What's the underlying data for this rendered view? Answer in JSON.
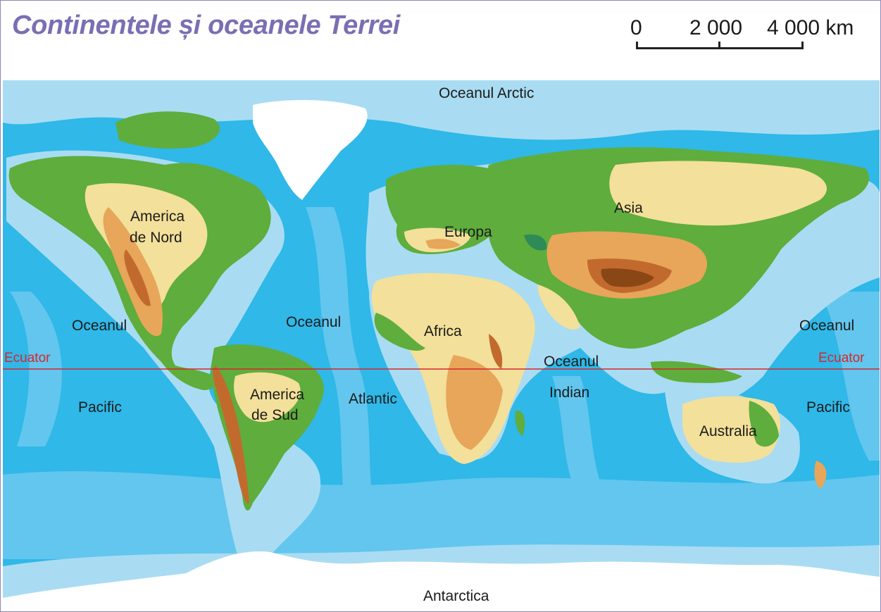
{
  "title": "Continentele și oceanele Terrei",
  "scale": {
    "ticks": [
      "0",
      "2 000",
      "4 000 km"
    ]
  },
  "labels": {
    "arctic": "Oceanul Arctic",
    "pacific_w_1": "Oceanul",
    "pacific_w_2": "Pacific",
    "atlantic_1": "Oceanul",
    "atlantic_2": "Atlantic",
    "indian_1": "Oceanul",
    "indian_2": "Indian",
    "pacific_e_1": "Oceanul",
    "pacific_e_2": "Pacific",
    "n_america_1": "America",
    "n_america_2": "de Nord",
    "s_america_1": "America",
    "s_america_2": "de Sud",
    "europe": "Europa",
    "asia": "Asia",
    "africa": "Africa",
    "australia": "Australia",
    "antarctica": "Antarctica",
    "equator_left": "Ecuator",
    "equator_right": "Ecuator"
  },
  "colors": {
    "deep_ocean": "#2fb8e8",
    "shelf": "#a9dcf2",
    "mid_ocean": "#63c6ee",
    "lowland": "#5fad3c",
    "plains": "#f3e09a",
    "highland": "#e7a65a",
    "mountain": "#c26a2e",
    "peak": "#8a4716",
    "ice": "#ffffff",
    "equator": "#d6262c",
    "title": "#7a6fb3"
  }
}
